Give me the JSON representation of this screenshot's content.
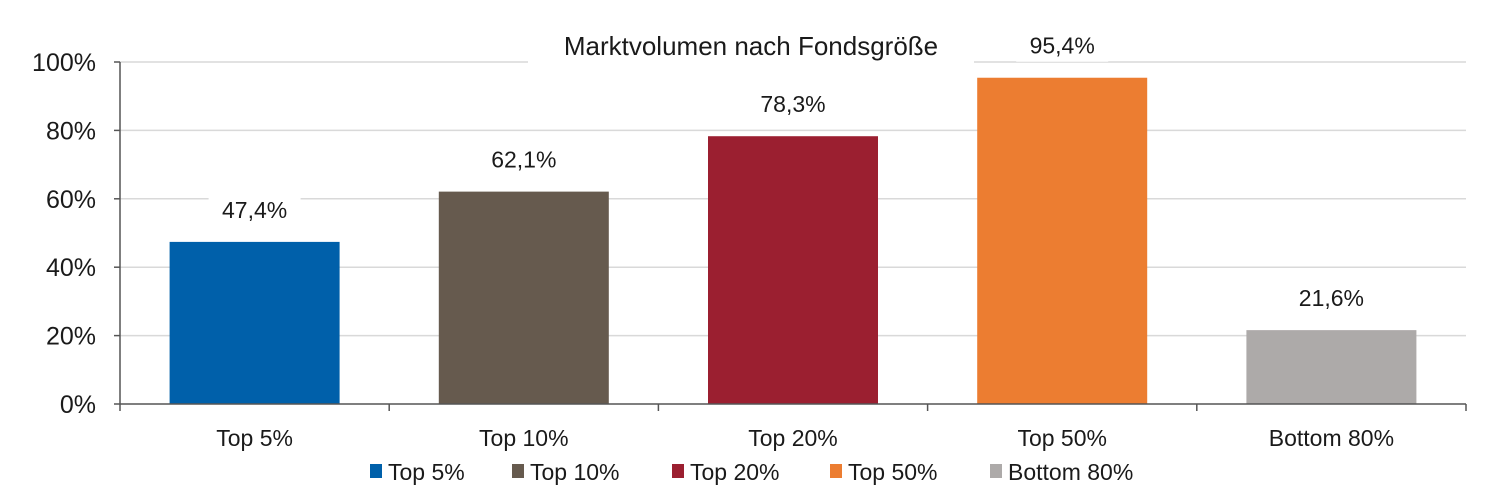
{
  "chart_data": {
    "type": "bar",
    "title": "Marktvolumen nach Fondsgröße",
    "categories": [
      "Top 5%",
      "Top 10%",
      "Top 20%",
      "Top 50%",
      "Bottom 80%"
    ],
    "values": [
      47.4,
      62.1,
      78.3,
      95.4,
      21.6
    ],
    "value_labels": [
      "47,4%",
      "62,1%",
      "78,3%",
      "95,4%",
      "21,6%"
    ],
    "colors": [
      "#0060AA",
      "#665A4E",
      "#9B1F30",
      "#EC7D31",
      "#ADAAA9"
    ],
    "ylim": [
      0,
      100
    ],
    "yticks": [
      0,
      20,
      40,
      60,
      80,
      100
    ],
    "ytick_labels": [
      "0%",
      "20%",
      "40%",
      "60%",
      "80%",
      "100%"
    ],
    "xlabel": "",
    "ylabel": "",
    "grid": true,
    "legend": {
      "placement": "bottom",
      "entries": [
        "Top 5%",
        "Top 10%",
        "Top 20%",
        "Top 50%",
        "Bottom 80%"
      ]
    }
  }
}
